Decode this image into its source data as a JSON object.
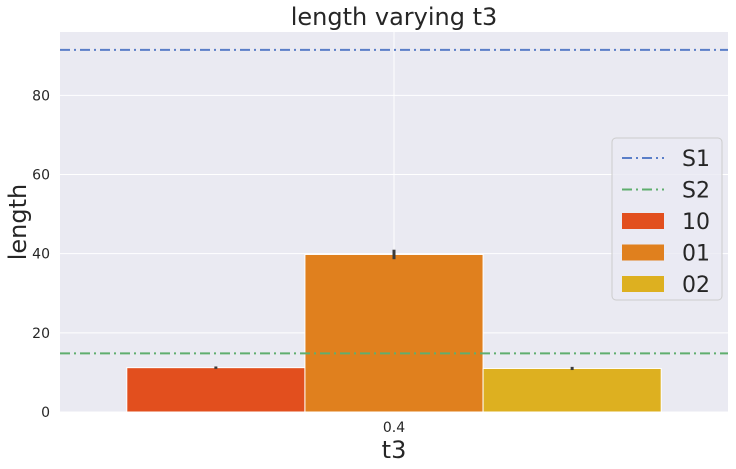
{
  "chart_data": {
    "type": "bar",
    "title": "length varying t3",
    "xlabel": "t3",
    "ylabel": "length",
    "categories": [
      "0.4"
    ],
    "ylim": [
      0,
      96
    ],
    "yticks": [
      0,
      20,
      40,
      60,
      80
    ],
    "grid": true,
    "legend_position": "center-right",
    "series": [
      {
        "name": "10",
        "values": [
          11.2
        ],
        "error": [
          0.3
        ],
        "color": "#e24f1e"
      },
      {
        "name": "01",
        "values": [
          39.8
        ],
        "error": [
          1.2
        ],
        "color": "#e0801e"
      },
      {
        "name": "02",
        "values": [
          11.0
        ],
        "error": [
          0.4
        ],
        "color": "#ddb020"
      }
    ],
    "reference_lines": [
      {
        "name": "S1",
        "value": 91.5,
        "color": "#5a7ec8",
        "style": "dashdot"
      },
      {
        "name": "S2",
        "value": 14.8,
        "color": "#5fae6e",
        "style": "dashdot"
      }
    ]
  }
}
